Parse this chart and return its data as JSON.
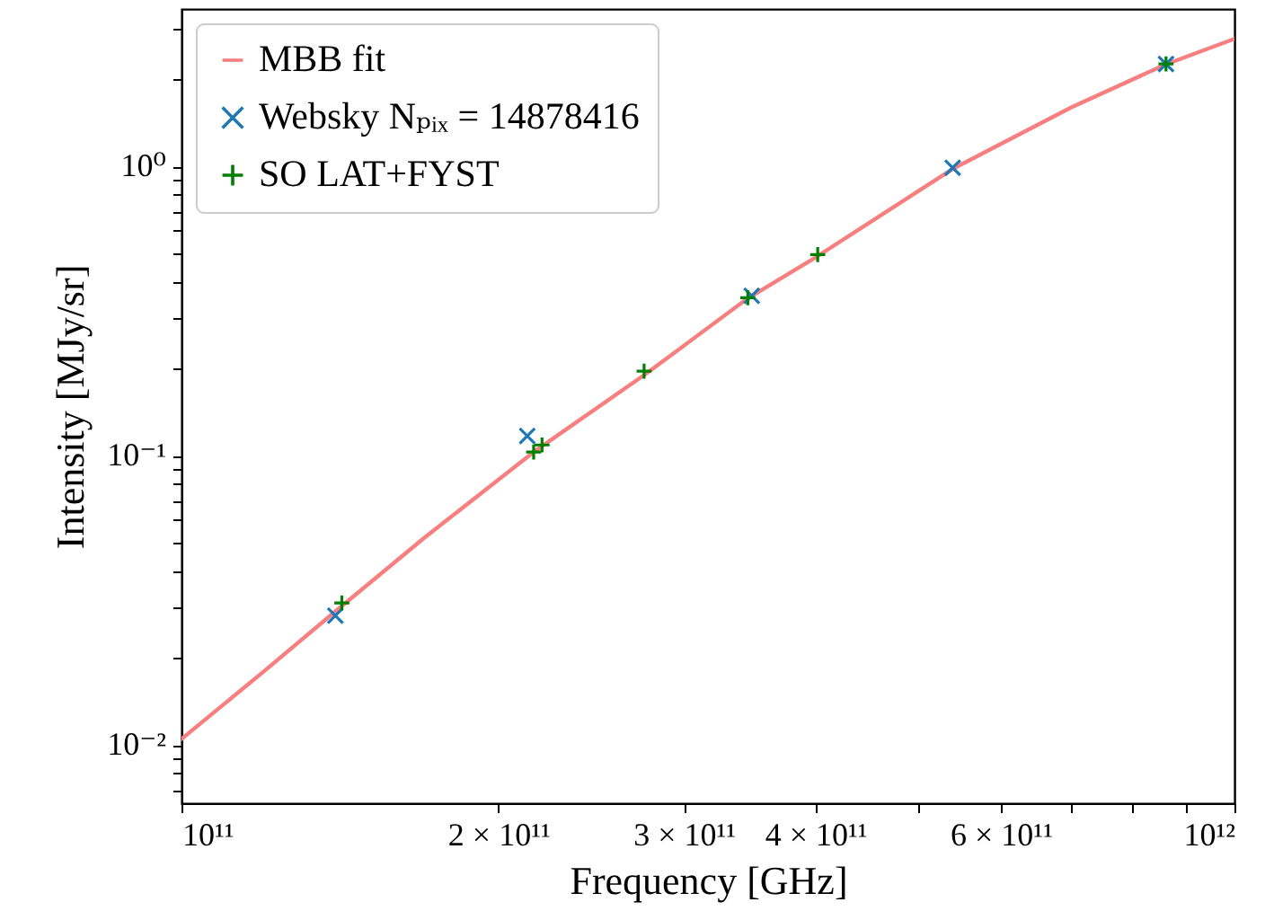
{
  "chart_data": {
    "type": "scatter",
    "xlabel": "Frequency [GHz]",
    "ylabel": "Intensity [MJy/sr]",
    "log": "xy",
    "xlim": [
      100000000000.0,
      1000000000000.0
    ],
    "ylim": [
      0.0063,
      3.5
    ],
    "xticks": [
      {
        "value": 100000000000.0,
        "label": "10¹¹"
      },
      {
        "value": 200000000000.0,
        "label": "2 × 10¹¹"
      },
      {
        "value": 300000000000.0,
        "label": "3 × 10¹¹"
      },
      {
        "value": 400000000000.0,
        "label": "4 × 10¹¹"
      },
      {
        "value": 500000000000.0,
        "label": null
      },
      {
        "value": 600000000000.0,
        "label": "6 × 10¹¹"
      },
      {
        "value": 700000000000.0,
        "label": null
      },
      {
        "value": 800000000000.0,
        "label": null
      },
      {
        "value": 900000000000.0,
        "label": null
      },
      {
        "value": 1000000000000.0,
        "label": "10¹²"
      }
    ],
    "yticks": [
      {
        "value": 0.007,
        "label": null
      },
      {
        "value": 0.008,
        "label": null
      },
      {
        "value": 0.009,
        "label": null
      },
      {
        "value": 0.01,
        "label": "10⁻²"
      },
      {
        "value": 0.02,
        "label": null
      },
      {
        "value": 0.03,
        "label": null
      },
      {
        "value": 0.04,
        "label": null
      },
      {
        "value": 0.05,
        "label": null
      },
      {
        "value": 0.06,
        "label": null
      },
      {
        "value": 0.07,
        "label": null
      },
      {
        "value": 0.08,
        "label": null
      },
      {
        "value": 0.09,
        "label": null
      },
      {
        "value": 0.1,
        "label": "10⁻¹"
      },
      {
        "value": 0.2,
        "label": null
      },
      {
        "value": 0.3,
        "label": null
      },
      {
        "value": 0.4,
        "label": null
      },
      {
        "value": 0.5,
        "label": null
      },
      {
        "value": 0.6,
        "label": null
      },
      {
        "value": 0.7,
        "label": null
      },
      {
        "value": 0.8,
        "label": null
      },
      {
        "value": 0.9,
        "label": null
      },
      {
        "value": 1,
        "label": "10⁰"
      },
      {
        "value": 2,
        "label": null
      },
      {
        "value": 3,
        "label": null
      }
    ],
    "legend": "top left",
    "grid": false,
    "series": [
      {
        "name": "MBB fit",
        "type": "line",
        "line_style": "solid",
        "color": "#f87f7f",
        "x": [
          100000000000.0,
          120000000000.0,
          140000000000.0,
          170000000000.0,
          216000000000.0,
          275000000000.0,
          345000000000.0,
          402000000000.0,
          540000000000.0,
          700000000000.0,
          860000000000.0,
          1000000000000.0
        ],
        "values": [
          0.0105,
          0.0181,
          0.029,
          0.052,
          0.103,
          0.19,
          0.35,
          0.49,
          0.98,
          1.6,
          2.25,
          2.76
        ]
      },
      {
        "name": "Websky Nₚᵢₓ = 14878416",
        "marker": "x",
        "color": "#1f77b4",
        "x": [
          140000000000.0,
          213000000000.0,
          348000000000.0,
          540000000000.0,
          861000000000.0
        ],
        "values": [
          0.028,
          0.117,
          0.357,
          0.99,
          2.26
        ]
      },
      {
        "name": "SO LAT+FYST",
        "marker": "cross",
        "color": "#008000",
        "x": [
          142000000000.0,
          216000000000.0,
          220000000000.0,
          275000000000.0,
          345000000000.0,
          402000000000.0,
          861000000000.0
        ],
        "values": [
          0.031,
          0.103,
          0.109,
          0.196,
          0.352,
          0.496,
          2.26
        ]
      }
    ]
  }
}
